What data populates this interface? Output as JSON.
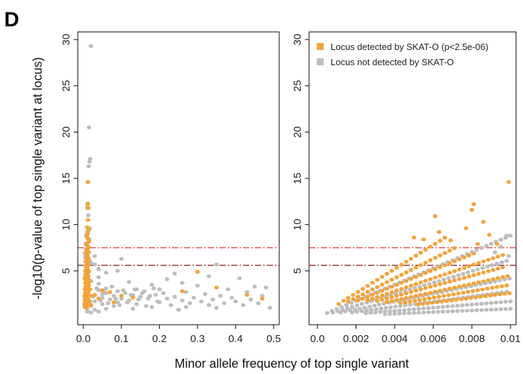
{
  "panel_letter": "D",
  "colors": {
    "detected": "#f3a33a",
    "not_detected": "#bdbdbd",
    "threshold_upper": "#d73027",
    "threshold_lower": "#7f0000"
  },
  "chart_data": [
    {
      "type": "scatter",
      "panel": "left",
      "xlabel": "Minor allele frequency of top single variant",
      "ylabel": "-log10(p-value of top single variant at locus)",
      "xlim": [
        0,
        0.5
      ],
      "ylim": [
        0,
        30
      ],
      "xticks": [
        "0.0",
        "0.1",
        "0.2",
        "0.3",
        "0.4",
        "0.5"
      ],
      "yticks": [
        "5",
        "10",
        "15",
        "20",
        "25",
        "30"
      ],
      "hlines": [
        7.5,
        5.6
      ],
      "series": [
        {
          "name": "Locus not detected by SKAT-O",
          "color": "#bdbdbd",
          "points": [
            [
              0.02,
              29.3
            ],
            [
              0.015,
              20.5
            ],
            [
              0.018,
              17.1
            ],
            [
              0.016,
              16.8
            ],
            [
              0.014,
              16.3
            ],
            [
              0.012,
              12.3
            ],
            [
              0.01,
              11.8
            ],
            [
              0.013,
              11.0
            ],
            [
              0.017,
              9.6
            ],
            [
              0.011,
              9.2
            ],
            [
              0.008,
              8.9
            ],
            [
              0.015,
              8.4
            ],
            [
              0.009,
              8.0
            ],
            [
              0.006,
              7.9
            ],
            [
              0.012,
              7.6
            ],
            [
              0.007,
              7.3
            ],
            [
              0.014,
              7.0
            ],
            [
              0.004,
              6.9
            ],
            [
              0.005,
              6.5
            ],
            [
              0.03,
              6.6
            ],
            [
              0.1,
              6.3
            ],
            [
              0.008,
              6.2
            ],
            [
              0.02,
              5.9
            ],
            [
              0.03,
              5.7
            ],
            [
              0.35,
              5.7
            ],
            [
              0.008,
              5.4
            ],
            [
              0.04,
              5.2
            ],
            [
              0.09,
              5.0
            ],
            [
              0.06,
              4.8
            ],
            [
              0.24,
              4.7
            ],
            [
              0.005,
              4.6
            ],
            [
              0.33,
              4.4
            ],
            [
              0.04,
              4.3
            ],
            [
              0.41,
              4.2
            ],
            [
              0.22,
              4.1
            ],
            [
              0.015,
              4.0
            ],
            [
              0.02,
              3.9
            ],
            [
              0.12,
              3.8
            ],
            [
              0.26,
              3.7
            ],
            [
              0.04,
              3.6
            ],
            [
              0.18,
              3.5
            ],
            [
              0.3,
              3.4
            ],
            [
              0.45,
              3.3
            ],
            [
              0.48,
              3.2
            ],
            [
              0.06,
              3.1
            ],
            [
              0.14,
              3.0
            ],
            [
              0.2,
              3.0
            ],
            [
              0.38,
              3.0
            ],
            [
              0.04,
              2.9
            ],
            [
              0.09,
              2.8
            ],
            [
              0.16,
              2.8
            ],
            [
              0.27,
              2.7
            ],
            [
              0.43,
              2.7
            ],
            [
              0.06,
              2.6
            ],
            [
              0.11,
              2.6
            ],
            [
              0.21,
              2.6
            ],
            [
              0.32,
              2.5
            ],
            [
              0.05,
              2.5
            ],
            [
              0.13,
              2.4
            ],
            [
              0.19,
              2.4
            ],
            [
              0.36,
              2.3
            ],
            [
              0.47,
              2.3
            ],
            [
              0.08,
              2.3
            ],
            [
              0.15,
              2.2
            ],
            [
              0.24,
              2.2
            ],
            [
              0.29,
              2.1
            ],
            [
              0.39,
              2.1
            ],
            [
              0.05,
              2.1
            ],
            [
              0.1,
              2.0
            ],
            [
              0.17,
              2.0
            ],
            [
              0.22,
              2.0
            ],
            [
              0.34,
              1.9
            ],
            [
              0.44,
              1.9
            ],
            [
              0.07,
              1.9
            ],
            [
              0.12,
              1.8
            ],
            [
              0.26,
              1.8
            ],
            [
              0.31,
              1.7
            ],
            [
              0.4,
              1.7
            ],
            [
              0.03,
              1.7
            ],
            [
              0.09,
              1.6
            ],
            [
              0.2,
              1.6
            ],
            [
              0.28,
              1.5
            ],
            [
              0.37,
              1.5
            ],
            [
              0.46,
              1.5
            ],
            [
              0.05,
              1.4
            ],
            [
              0.14,
              1.4
            ],
            [
              0.23,
              1.3
            ],
            [
              0.33,
              1.3
            ],
            [
              0.42,
              1.3
            ],
            [
              0.02,
              1.2
            ],
            [
              0.08,
              1.2
            ],
            [
              0.18,
              1.1
            ],
            [
              0.27,
              1.1
            ],
            [
              0.35,
              1.0
            ],
            [
              0.49,
              1.0
            ],
            [
              0.01,
              0.9
            ],
            [
              0.06,
              0.9
            ],
            [
              0.13,
              0.9
            ],
            [
              0.25,
              0.8
            ],
            [
              0.03,
              0.8
            ],
            [
              0.01,
              0.6
            ],
            [
              0.02,
              0.5
            ],
            [
              0.04,
              0.6
            ],
            [
              0.015,
              1.4
            ],
            [
              0.025,
              2.2
            ],
            [
              0.035,
              3.1
            ],
            [
              0.045,
              1.8
            ],
            [
              0.055,
              2.7
            ],
            [
              0.065,
              1.5
            ],
            [
              0.075,
              3.3
            ],
            [
              0.085,
              2.0
            ],
            [
              0.095,
              1.3
            ],
            [
              0.105,
              2.9
            ],
            [
              0.115,
              1.6
            ],
            [
              0.125,
              2.4
            ],
            [
              0.135,
              3.0
            ],
            [
              0.145,
              1.9
            ],
            [
              0.155,
              2.6
            ],
            [
              0.165,
              1.2
            ],
            [
              0.175,
              2.3
            ],
            [
              0.185,
              3.1
            ],
            [
              0.195,
              1.7
            ]
          ]
        },
        {
          "name": "Locus detected by SKAT-O (p<2.5e-06)",
          "color": "#f3a33a",
          "points": [
            [
              0.012,
              14.6
            ],
            [
              0.011,
              12.2
            ],
            [
              0.013,
              11.8
            ],
            [
              0.012,
              10.5
            ],
            [
              0.01,
              9.7
            ],
            [
              0.014,
              9.4
            ],
            [
              0.011,
              9.0
            ],
            [
              0.009,
              8.7
            ],
            [
              0.012,
              8.5
            ],
            [
              0.015,
              8.2
            ],
            [
              0.01,
              8.0
            ],
            [
              0.008,
              7.8
            ],
            [
              0.013,
              7.6
            ],
            [
              0.011,
              7.4
            ],
            [
              0.009,
              7.2
            ],
            [
              0.014,
              7.0
            ],
            [
              0.007,
              6.9
            ],
            [
              0.01,
              6.7
            ],
            [
              0.012,
              6.5
            ],
            [
              0.008,
              6.3
            ],
            [
              0.015,
              6.2
            ],
            [
              0.006,
              6.0
            ],
            [
              0.011,
              5.9
            ],
            [
              0.009,
              5.7
            ],
            [
              0.013,
              5.6
            ],
            [
              0.007,
              5.4
            ],
            [
              0.01,
              5.3
            ],
            [
              0.012,
              5.1
            ],
            [
              0.005,
              5.0
            ],
            [
              0.014,
              4.9
            ],
            [
              0.008,
              4.8
            ],
            [
              0.011,
              4.6
            ],
            [
              0.006,
              4.5
            ],
            [
              0.013,
              4.4
            ],
            [
              0.009,
              4.3
            ],
            [
              0.004,
              4.2
            ],
            [
              0.012,
              4.1
            ],
            [
              0.007,
              4.0
            ],
            [
              0.01,
              3.9
            ],
            [
              0.015,
              3.8
            ],
            [
              0.005,
              3.7
            ],
            [
              0.008,
              3.6
            ],
            [
              0.011,
              3.5
            ],
            [
              0.014,
              3.4
            ],
            [
              0.006,
              3.3
            ],
            [
              0.009,
              3.2
            ],
            [
              0.012,
              3.1
            ],
            [
              0.004,
              3.0
            ],
            [
              0.007,
              2.9
            ],
            [
              0.01,
              2.8
            ],
            [
              0.013,
              2.7
            ],
            [
              0.005,
              2.6
            ],
            [
              0.008,
              2.5
            ],
            [
              0.011,
              2.4
            ],
            [
              0.003,
              2.3
            ],
            [
              0.006,
              2.2
            ],
            [
              0.009,
              2.1
            ],
            [
              0.012,
              2.0
            ],
            [
              0.004,
              1.9
            ],
            [
              0.007,
              1.8
            ],
            [
              0.01,
              1.7
            ],
            [
              0.005,
              1.6
            ],
            [
              0.008,
              1.5
            ],
            [
              0.003,
              1.4
            ],
            [
              0.006,
              1.3
            ],
            [
              0.009,
              1.2
            ],
            [
              0.004,
              1.1
            ],
            [
              0.007,
              1.0
            ],
            [
              0.016,
              3.9
            ],
            [
              0.018,
              3.0
            ],
            [
              0.02,
              2.3
            ],
            [
              0.017,
              1.7
            ],
            [
              0.3,
              4.9
            ],
            [
              0.35,
              3.2
            ],
            [
              0.07,
              2.7
            ],
            [
              0.03,
              2.4
            ],
            [
              0.13,
              2.1
            ],
            [
              0.26,
              2.8
            ],
            [
              0.43,
              2.4
            ],
            [
              0.47,
              2.0
            ],
            [
              0.08,
              1.6
            ],
            [
              0.1,
              2.3
            ],
            [
              0.02,
              1.3
            ],
            [
              0.04,
              2.0
            ],
            [
              0.05,
              2.9
            ]
          ]
        }
      ]
    },
    {
      "type": "scatter",
      "panel": "right",
      "xlabel": "Minor allele frequency of top single variant",
      "ylabel": "-log10(p-value of top single variant at locus)",
      "xlim": [
        0,
        0.01
      ],
      "ylim": [
        0,
        30
      ],
      "xticks": [
        "0.0",
        "0.002",
        "0.004",
        "0.006",
        "0.008",
        "0.01"
      ],
      "yticks": [
        "5",
        "10",
        "15",
        "20",
        "25",
        "30"
      ],
      "hlines": [
        7.5,
        5.6
      ],
      "legend": {
        "position": "top-left",
        "entries": [
          "Locus detected by SKAT-O (p<2.5e-06)",
          "Locus not detected by SKAT-O"
        ]
      },
      "series": [
        {
          "name": "Locus not detected by SKAT-O",
          "color": "#bdbdbd",
          "points_note_free": true,
          "rays": [
            {
              "slope": 880,
              "x0": 0.0005,
              "x1": 0.01,
              "step": 0.00025
            },
            {
              "slope": 620,
              "x0": 0.0008,
              "x1": 0.01,
              "step": 0.00025
            },
            {
              "slope": 420,
              "x0": 0.0012,
              "x1": 0.01,
              "step": 0.00025
            },
            {
              "slope": 280,
              "x0": 0.0018,
              "x1": 0.01,
              "step": 0.00025
            },
            {
              "slope": 170,
              "x0": 0.0025,
              "x1": 0.01,
              "step": 0.00025
            },
            {
              "slope": 90,
              "x0": 0.0035,
              "x1": 0.01,
              "step": 0.00025
            }
          ],
          "points": [
            [
              0.0098,
              8.8
            ],
            [
              0.0095,
              7.6
            ],
            [
              0.0092,
              7.0
            ],
            [
              0.0099,
              6.6
            ]
          ]
        },
        {
          "name": "Locus detected by SKAT-O (p<2.5e-06)",
          "color": "#f3a33a",
          "rays": [
            {
              "slope": 1300,
              "x0": 0.0011,
              "x1": 0.0066,
              "step": 0.00025
            },
            {
              "slope": 1050,
              "x0": 0.0016,
              "x1": 0.0072,
              "step": 0.00025
            },
            {
              "slope": 850,
              "x0": 0.0021,
              "x1": 0.0083,
              "step": 0.00025
            },
            {
              "slope": 700,
              "x0": 0.0026,
              "x1": 0.0096,
              "step": 0.00025
            },
            {
              "slope": 560,
              "x0": 0.0031,
              "x1": 0.0098,
              "step": 0.00025
            },
            {
              "slope": 450,
              "x0": 0.0036,
              "x1": 0.01,
              "step": 0.00025
            },
            {
              "slope": 350,
              "x0": 0.0043,
              "x1": 0.01,
              "step": 0.00025
            },
            {
              "slope": 260,
              "x0": 0.0052,
              "x1": 0.01,
              "step": 0.00025
            }
          ],
          "points": [
            [
              0.0099,
              14.6
            ],
            [
              0.0081,
              12.2
            ],
            [
              0.008,
              11.6
            ],
            [
              0.0061,
              10.9
            ],
            [
              0.0086,
              10.3
            ],
            [
              0.0077,
              9.6
            ],
            [
              0.0063,
              9.2
            ],
            [
              0.0089,
              8.9
            ],
            [
              0.0083,
              7.9
            ],
            [
              0.0069,
              8.3
            ],
            [
              0.0055,
              8.4
            ],
            [
              0.005,
              8.6
            ],
            [
              0.0093,
              7.9
            ]
          ]
        }
      ]
    }
  ]
}
